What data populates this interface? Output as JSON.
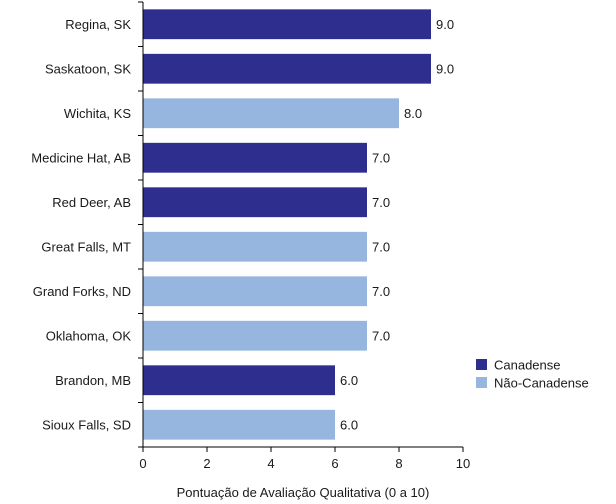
{
  "chart_data": {
    "type": "bar",
    "orientation": "horizontal",
    "categories": [
      "Regina, SK",
      "Saskatoon, SK",
      "Wichita, KS",
      "Medicine Hat, AB",
      "Red Deer, AB",
      "Great Falls, MT",
      "Grand Forks, ND",
      "Oklahoma, OK",
      "Brandon, MB",
      "Sioux Falls, SD"
    ],
    "values": [
      9.0,
      9.0,
      8.0,
      7.0,
      7.0,
      7.0,
      7.0,
      7.0,
      6.0,
      6.0
    ],
    "value_labels": [
      "9.0",
      "9.0",
      "8.0",
      "7.0",
      "7.0",
      "7.0",
      "7.0",
      "7.0",
      "6.0",
      "6.0"
    ],
    "groups": [
      "Canadense",
      "Canadense",
      "Não-Canadense",
      "Canadense",
      "Canadense",
      "Não-Canadense",
      "Não-Canadense",
      "Não-Canadense",
      "Canadense",
      "Não-Canadense"
    ],
    "legend": [
      {
        "name": "Canadense",
        "color": "#2e2e8e"
      },
      {
        "name": "Não-Canadense",
        "color": "#96b6e0"
      }
    ],
    "legend_position": "right",
    "xlabel": "Pontuação de Avaliação Qualitativa (0 a 10)",
    "ylabel": "",
    "title": "",
    "xlim": [
      0,
      10
    ],
    "xticks": [
      "0",
      "2",
      "4",
      "6",
      "8",
      "10"
    ],
    "grid": false
  }
}
